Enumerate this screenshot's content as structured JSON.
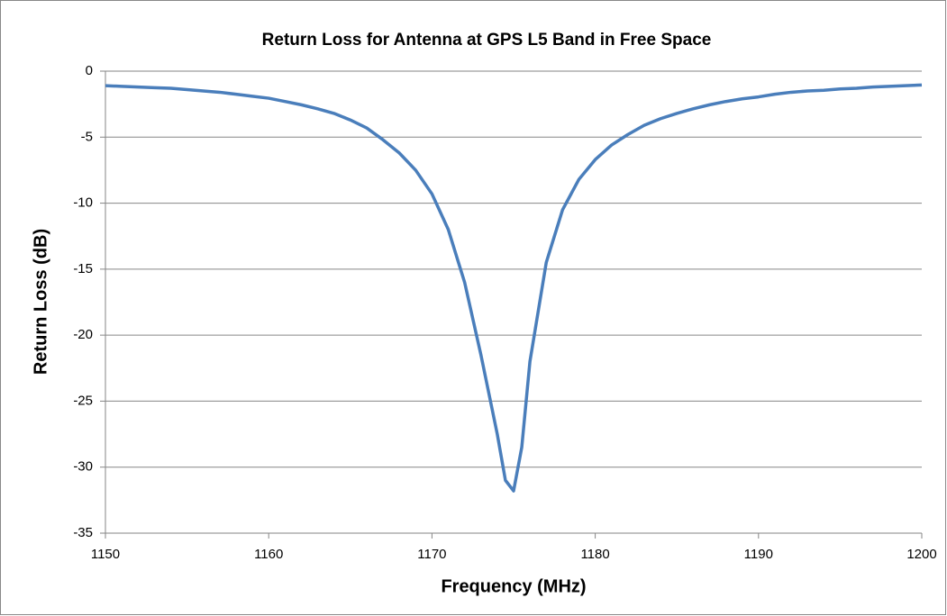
{
  "chart_data": {
    "type": "line",
    "title": "Return Loss for Antenna at GPS L5 Band in Free Space",
    "xlabel": "Frequency  (MHz)",
    "ylabel": "Return Loss (dB)",
    "x": [
      1150,
      1151,
      1152,
      1153,
      1154,
      1155,
      1156,
      1157,
      1158,
      1159,
      1160,
      1161,
      1162,
      1163,
      1164,
      1165,
      1166,
      1167,
      1168,
      1169,
      1170,
      1171,
      1172,
      1173,
      1174,
      1174.5,
      1175,
      1175.5,
      1176,
      1177,
      1178,
      1179,
      1180,
      1181,
      1182,
      1183,
      1184,
      1185,
      1186,
      1187,
      1188,
      1189,
      1190,
      1191,
      1192,
      1193,
      1194,
      1195,
      1196,
      1197,
      1198,
      1199,
      1200
    ],
    "values": [
      -1.1,
      -1.15,
      -1.2,
      -1.25,
      -1.3,
      -1.4,
      -1.5,
      -1.6,
      -1.75,
      -1.9,
      -2.05,
      -2.3,
      -2.55,
      -2.85,
      -3.2,
      -3.7,
      -4.3,
      -5.2,
      -6.2,
      -7.5,
      -9.3,
      -12.0,
      -16.0,
      -21.5,
      -27.5,
      -31.0,
      -31.8,
      -28.5,
      -22.0,
      -14.5,
      -10.5,
      -8.2,
      -6.7,
      -5.6,
      -4.8,
      -4.1,
      -3.6,
      -3.2,
      -2.85,
      -2.55,
      -2.3,
      -2.1,
      -1.95,
      -1.75,
      -1.6,
      -1.5,
      -1.45,
      -1.35,
      -1.3,
      -1.2,
      -1.15,
      -1.1,
      -1.05
    ],
    "color": "#4a7ebb",
    "xlim": [
      1150,
      1200
    ],
    "xticks": [
      1150,
      1160,
      1170,
      1180,
      1190,
      1200
    ],
    "ylim": [
      -35,
      0
    ],
    "yticks": [
      0,
      -5,
      -10,
      -15,
      -20,
      -25,
      -30,
      -35
    ],
    "grid": true
  }
}
